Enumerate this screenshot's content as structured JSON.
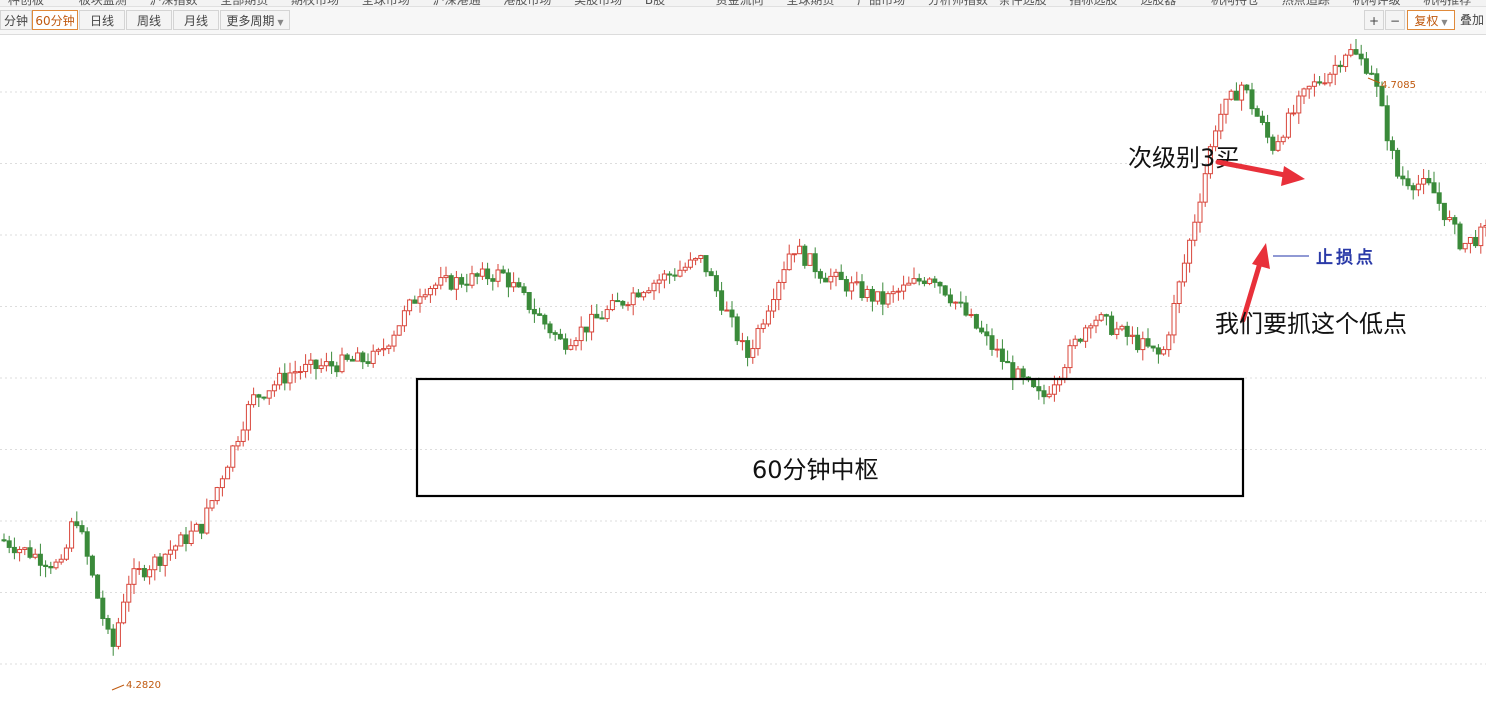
{
  "top_strip": [
    "种创板",
    "板块监测",
    "沪深指数",
    "全部期货",
    "期权市场",
    "全球市场",
    "沪深港通",
    "港股市场",
    "美股市场",
    "B股",
    "资金流向",
    "全球期货",
    "产品市场",
    "分析师指数",
    "条件选股",
    "指标选股",
    "选股器",
    "机构持仓",
    "热点追踪",
    "机构评级",
    "机构推荐"
  ],
  "toolbar": {
    "periods": [
      {
        "label": "分钟",
        "active": false
      },
      {
        "label": "60分钟",
        "active": true
      },
      {
        "label": "日线",
        "active": false
      },
      {
        "label": "周线",
        "active": false
      },
      {
        "label": "月线",
        "active": false
      }
    ],
    "more_label": "更多周期",
    "plus_label": "+",
    "minus_label": "−",
    "restore_label": "复权",
    "overlay_label": "叠加"
  },
  "chart_data": {
    "type": "candlestick",
    "y_range": [
      4.25,
      4.73
    ],
    "up_color": "#d8453a",
    "down_color": "#3a8a3a",
    "high_label": "4.7085",
    "low_label": "4.2820",
    "annotations": {
      "box_label": "60分钟中枢",
      "buy3_label": "次级别3买",
      "stop_label": "止损点",
      "low_point_label": "我们要抓这个低点"
    }
  }
}
